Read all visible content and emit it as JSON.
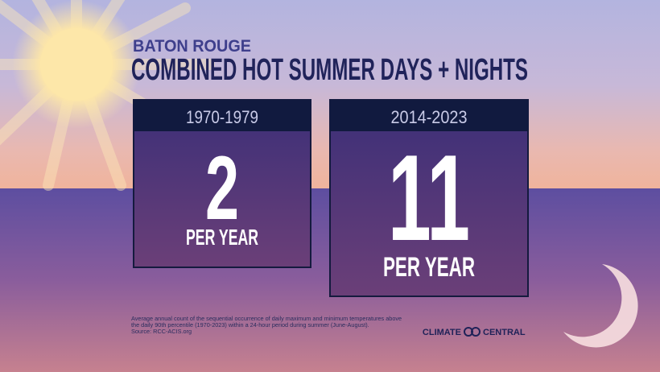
{
  "header": {
    "location": "BATON ROUGE",
    "title": "COMBINED HOT SUMMER DAYS + NIGHTS"
  },
  "panels": [
    {
      "period": "1970-1979",
      "value": 2,
      "unit": "PER YEAR"
    },
    {
      "period": "2014-2023",
      "value": 11,
      "unit": "PER YEAR"
    }
  ],
  "footnote": [
    "Average annual count of the sequential occurrence of daily maximum and minimum temperatures above",
    "the daily 90th percentile (1970-2023) within a 24-hour period during summer (June-August).",
    "Source: RCC-ACIS.org"
  ],
  "logo": {
    "left": "CLIMATE",
    "right": "CENTRAL"
  }
}
